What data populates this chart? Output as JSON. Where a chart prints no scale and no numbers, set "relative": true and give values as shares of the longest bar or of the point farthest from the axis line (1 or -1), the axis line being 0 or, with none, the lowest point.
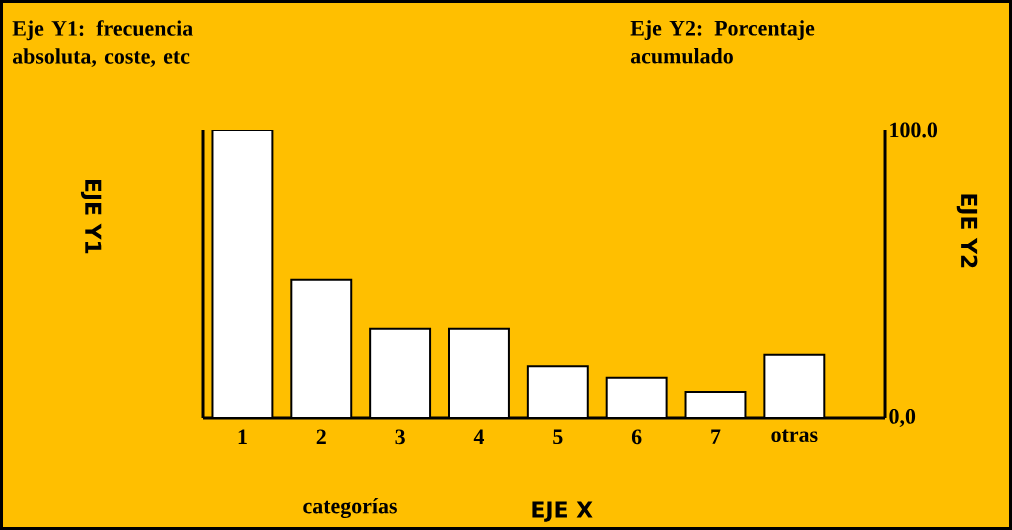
{
  "chart_data": {
    "type": "bar",
    "relative": true,
    "categories": [
      "1",
      "2",
      "3",
      "4",
      "5",
      "6",
      "7",
      "otras"
    ],
    "values": [
      1,
      0.48,
      0.31,
      0.31,
      0.18,
      0.14,
      0.09,
      0.22
    ],
    "color": "#ffffff",
    "ylabel": "EJE Y1",
    "y2label": "EJE Y2",
    "xlabel": "EJE X",
    "y2lim": [
      0,
      100
    ],
    "y2ticks": [
      {
        "value": 0,
        "label": "0,0"
      },
      {
        "value": 100,
        "label": "100.0"
      }
    ],
    "annotations": [
      "Eje Y1: frecuencia absoluta, coste, etc",
      "Eje Y2: Porcentaje acumulado",
      "categorías"
    ]
  }
}
